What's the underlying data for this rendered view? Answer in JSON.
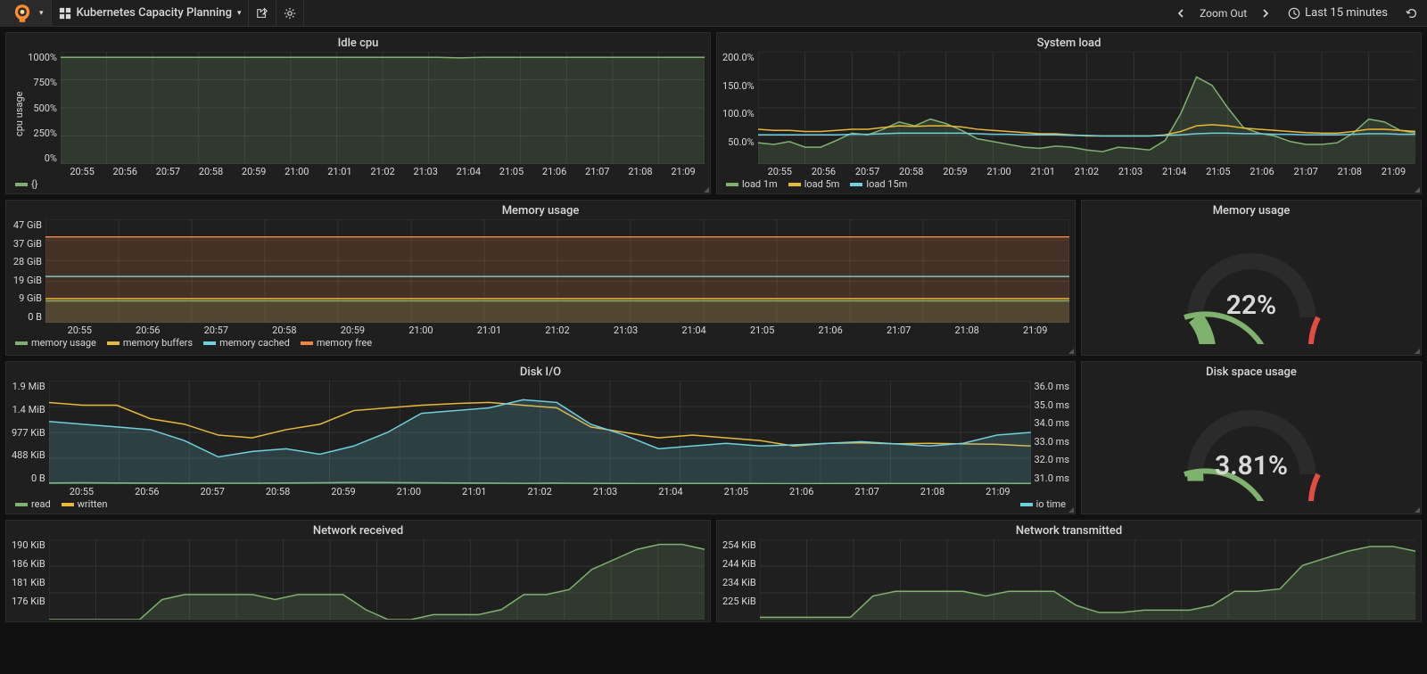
{
  "header": {
    "title": "Kubernetes Capacity Planning",
    "zoom_out": "Zoom Out",
    "time_range": "Last 15 minutes"
  },
  "colors": {
    "green": "#7eb26d",
    "yellow": "#eab839",
    "cyan": "#6ed0e0",
    "orange": "#ef843c",
    "grid": "#333333",
    "panel_bg": "#1f1f20"
  },
  "x_ticks": [
    "20:55",
    "20:56",
    "20:57",
    "20:58",
    "20:59",
    "21:00",
    "21:01",
    "21:02",
    "21:03",
    "21:04",
    "21:05",
    "21:06",
    "21:07",
    "21:08",
    "21:09"
  ],
  "idle_cpu": {
    "title": "Idle cpu",
    "y_label": "cpu usage",
    "y_ticks": [
      "1000%",
      "750%",
      "500%",
      "250%",
      "0%"
    ],
    "series": [
      {
        "name": "{}",
        "color": "#7eb26d",
        "values": [
          950,
          950,
          950,
          950,
          950,
          950,
          950,
          950,
          950,
          950,
          950,
          950,
          950,
          950,
          950,
          950,
          950,
          950,
          945,
          950,
          950,
          950,
          950,
          950,
          950,
          950,
          950,
          950,
          950,
          950
        ],
        "ymax": 1000,
        "fill": true
      }
    ]
  },
  "system_load": {
    "title": "System load",
    "y_ticks": [
      "200.0%",
      "150.0%",
      "100.0%",
      "50.0%",
      ""
    ],
    "series": [
      {
        "name": "load 1m",
        "color": "#7eb26d",
        "values": [
          38,
          35,
          40,
          30,
          30,
          42,
          55,
          52,
          62,
          75,
          68,
          80,
          72,
          60,
          45,
          40,
          35,
          30,
          28,
          32,
          30,
          25,
          22,
          30,
          28,
          25,
          42,
          90,
          155,
          140,
          100,
          65,
          55,
          50,
          40,
          35,
          35,
          38,
          55,
          80,
          75,
          60,
          55
        ],
        "ymax": 200,
        "fill": true
      },
      {
        "name": "load 5m",
        "color": "#eab839",
        "values": [
          62,
          60,
          60,
          58,
          58,
          60,
          62,
          62,
          65,
          68,
          67,
          68,
          68,
          66,
          62,
          60,
          58,
          56,
          54,
          54,
          52,
          50,
          50,
          50,
          50,
          50,
          52,
          58,
          68,
          70,
          68,
          64,
          62,
          60,
          58,
          56,
          55,
          55,
          58,
          62,
          62,
          60,
          58
        ],
        "ymax": 200,
        "fill": false
      },
      {
        "name": "load 15m",
        "color": "#6ed0e0",
        "values": [
          52,
          52,
          52,
          52,
          52,
          52,
          53,
          53,
          54,
          55,
          55,
          55,
          55,
          55,
          54,
          53,
          53,
          52,
          52,
          52,
          51,
          51,
          50,
          50,
          50,
          50,
          51,
          52,
          54,
          55,
          55,
          54,
          54,
          53,
          53,
          52,
          52,
          52,
          53,
          54,
          54,
          53,
          53
        ],
        "ymax": 200,
        "fill": false
      }
    ]
  },
  "memory_usage": {
    "title": "Memory usage",
    "y_ticks": [
      "47 GiB",
      "37 GiB",
      "28 GiB",
      "19 GiB",
      "9 GiB",
      "0 B"
    ],
    "series": [
      {
        "name": "memory usage",
        "color": "#7eb26d",
        "values": [
          10,
          10,
          10,
          10,
          10,
          10,
          10,
          10,
          10,
          10,
          10,
          10,
          10,
          10,
          10,
          10,
          10,
          10,
          10,
          10,
          10,
          10,
          10,
          10,
          10,
          10,
          10,
          10,
          10,
          10
        ],
        "ymax": 47,
        "fill": true
      },
      {
        "name": "memory buffers",
        "color": "#eab839",
        "values": [
          11,
          11,
          11,
          11,
          11,
          11,
          11,
          11,
          11,
          11,
          11,
          11,
          11,
          11,
          11,
          11,
          11,
          11,
          11,
          11,
          11,
          11,
          11,
          11,
          11,
          11,
          11,
          11,
          11,
          11
        ],
        "ymax": 47,
        "fill": false
      },
      {
        "name": "memory cached",
        "color": "#6ed0e0",
        "values": [
          21,
          21,
          21,
          21,
          21,
          21,
          21,
          21,
          21,
          21,
          21,
          21,
          21,
          21,
          21,
          21,
          21,
          21,
          21,
          21,
          21,
          21,
          21,
          21,
          21,
          21,
          21,
          21,
          21,
          21
        ],
        "ymax": 47,
        "fill": false
      },
      {
        "name": "memory free",
        "color": "#ef843c",
        "values": [
          39,
          39,
          39,
          39,
          39,
          39,
          39,
          39,
          39,
          39,
          39,
          39,
          39,
          39,
          39,
          39,
          39,
          39,
          39,
          39,
          39,
          39,
          39,
          39,
          39,
          39,
          39,
          39,
          39,
          39
        ],
        "ymax": 47,
        "fill": true
      }
    ]
  },
  "memory_gauge": {
    "title": "Memory usage",
    "value": "22%",
    "fraction": 0.22,
    "thresholds": [
      0.6,
      0.85
    ],
    "colors": [
      "#7eb26d",
      "#ef843c",
      "#e24d42"
    ]
  },
  "disk_io": {
    "title": "Disk I/O",
    "y_ticks": [
      "1.9 MiB",
      "1.4 MiB",
      "977 KiB",
      "488 KiB",
      "0 B"
    ],
    "y_ticks_right": [
      "36.0 ms",
      "35.0 ms",
      "34.0 ms",
      "33.0 ms",
      "32.0 ms",
      "31.0 ms"
    ],
    "series": [
      {
        "name": "read",
        "color": "#7eb26d",
        "values": [
          20,
          25,
          20,
          18,
          15,
          18,
          16,
          20,
          25,
          30,
          28,
          25,
          20,
          18,
          15,
          18,
          15,
          12,
          10,
          12,
          12,
          10,
          8,
          10,
          12,
          10,
          10,
          12,
          14,
          12
        ],
        "ymax": 1900,
        "fill": true
      },
      {
        "name": "written",
        "color": "#eab839",
        "values": [
          1500,
          1450,
          1450,
          1200,
          1100,
          900,
          850,
          1000,
          1100,
          1350,
          1400,
          1450,
          1480,
          1500,
          1450,
          1400,
          1050,
          950,
          850,
          900,
          850,
          800,
          700,
          750,
          760,
          740,
          750,
          740,
          730,
          700
        ],
        "ymax": 1900,
        "fill": false
      }
    ],
    "series_right": [
      {
        "name": "io time",
        "color": "#6ed0e0",
        "values": [
          1150,
          1100,
          1050,
          1000,
          800,
          500,
          600,
          650,
          550,
          700,
          950,
          1300,
          1350,
          1400,
          1550,
          1500,
          1100,
          900,
          650,
          700,
          750,
          700,
          720,
          750,
          780,
          740,
          700,
          750,
          900,
          950
        ],
        "ymax": 1900,
        "fill": true
      }
    ]
  },
  "disk_gauge": {
    "title": "Disk space usage",
    "value": "3.81%",
    "fraction": 0.0381,
    "thresholds": [
      0.6,
      0.85
    ],
    "colors": [
      "#7eb26d",
      "#ef843c",
      "#e24d42"
    ]
  },
  "network_received": {
    "title": "Network received",
    "y_ticks": [
      "190 KiB",
      "186 KiB",
      "181 KiB",
      "176 KiB"
    ],
    "series": [
      {
        "name": "",
        "color": "#7eb26d",
        "values": [
          175,
          175,
          175,
          175,
          175,
          179,
          180,
          180,
          180,
          180,
          179,
          180,
          180,
          180,
          177,
          175,
          175,
          176,
          176,
          176,
          177,
          180,
          180,
          181,
          185,
          187,
          189,
          190,
          190,
          189
        ],
        "ymin": 175,
        "ymax": 191,
        "fill": true
      }
    ]
  },
  "network_transmitted": {
    "title": "Network transmitted",
    "y_ticks": [
      "254 KiB",
      "244 KiB",
      "234 KiB",
      "225 KiB"
    ],
    "series": [
      {
        "name": "",
        "color": "#7eb26d",
        "values": [
          223,
          223,
          223,
          223,
          223,
          232,
          234,
          234,
          234,
          234,
          232,
          234,
          234,
          234,
          228,
          225,
          225,
          226,
          226,
          226,
          228,
          234,
          234,
          235,
          245,
          248,
          251,
          253,
          253,
          251
        ],
        "ymin": 222,
        "ymax": 256,
        "fill": true
      }
    ]
  }
}
